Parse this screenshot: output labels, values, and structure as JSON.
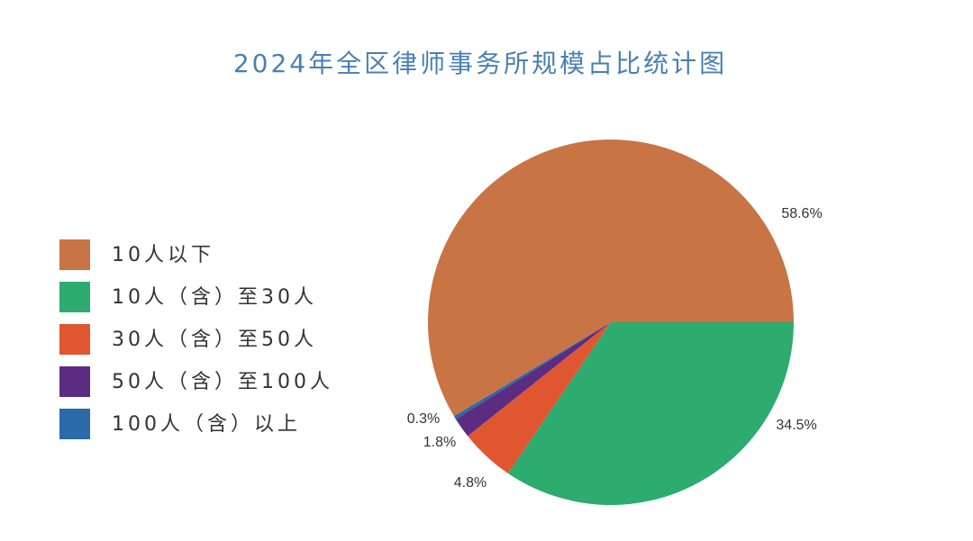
{
  "chart_data": {
    "type": "pie",
    "title": "2024年全区律师事务所规模占比统计图",
    "categories": [
      "10人以下",
      "10人（含）至30人",
      "30人（含）至50人",
      "50人（含）至100人",
      "100人（含）以上"
    ],
    "values": [
      58.6,
      34.5,
      4.8,
      1.8,
      0.3
    ],
    "value_labels": [
      "58.6%",
      "34.5%",
      "4.8%",
      "1.8%",
      "0.3%"
    ],
    "colors": [
      "#c87444",
      "#2eab6f",
      "#e05631",
      "#5b2c82",
      "#2a6aa8"
    ]
  }
}
